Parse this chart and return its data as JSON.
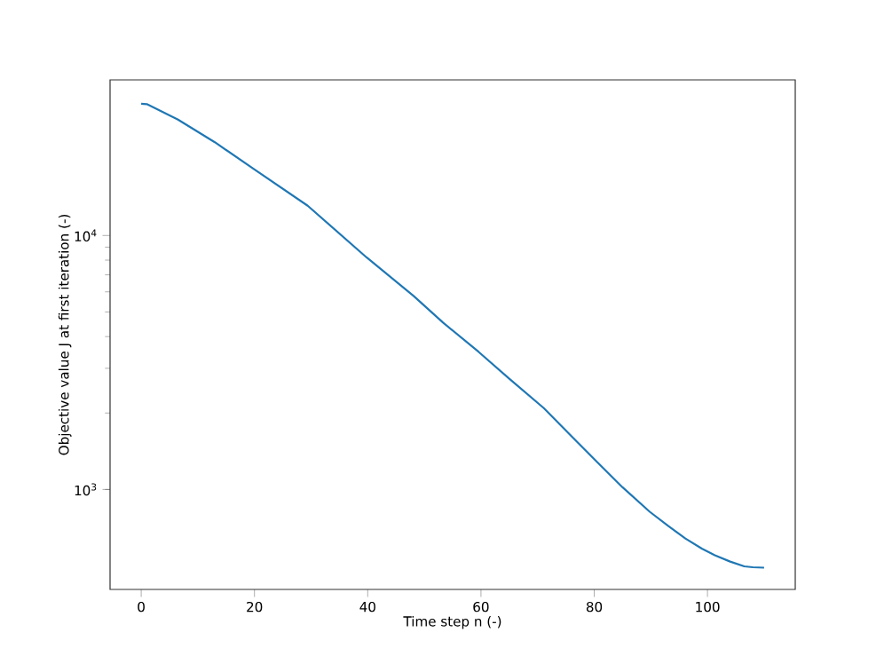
{
  "chart_data": {
    "type": "line",
    "xlabel": "Time step n (-)",
    "ylabel": "Objective value J at first iteration (-)",
    "x": [
      0,
      1,
      6.5,
      13,
      20,
      29.4,
      39.8,
      48.1,
      53.3,
      59.6,
      65,
      71.1,
      76,
      80.4,
      85,
      89.8,
      93,
      96.1,
      99,
      101.3,
      104,
      106.5,
      108,
      110
    ],
    "series": [
      {
        "color": "#1f77b4",
        "values": [
          33000,
          32900,
          28600,
          23300,
          18200,
          13100,
          8200,
          5780,
          4540,
          3480,
          2730,
          2090,
          1620,
          1290,
          1020,
          817,
          720,
          641,
          585,
          551,
          520,
          498,
          494,
          492
        ]
      }
    ],
    "xlim": [
      -5.5,
      115.5
    ],
    "ylim": [
      404,
      41000
    ],
    "log": "y",
    "xticks": [
      0,
      20,
      40,
      60,
      80,
      100
    ],
    "yticks": [
      {
        "value": 1000,
        "label": "10$^{3}$"
      },
      {
        "value": 10000,
        "label": "10$^{4}$"
      }
    ]
  }
}
